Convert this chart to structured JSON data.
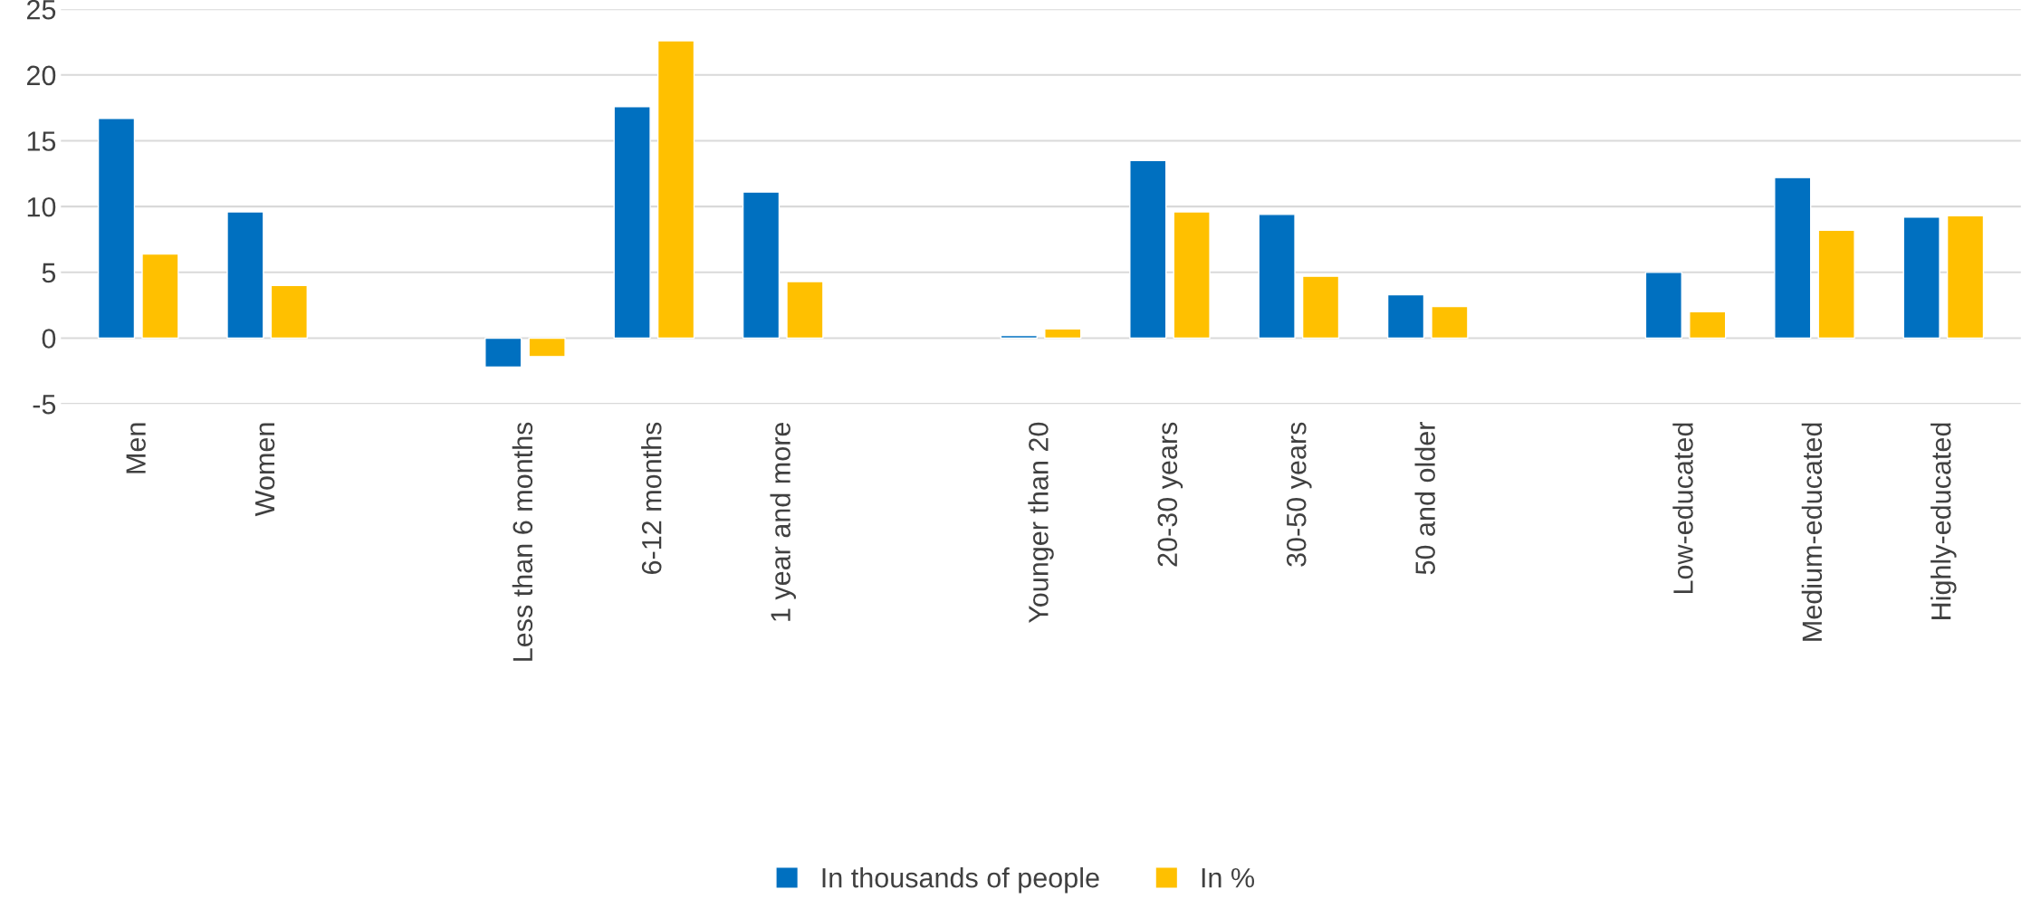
{
  "chart_data": {
    "type": "bar",
    "categories": [
      "Men",
      "Women",
      null,
      "Less than 6 months",
      "6-12 months",
      "1 year and more",
      null,
      "Younger than 20",
      "20-30 years",
      "30-50 years",
      "50 and older",
      null,
      "Low-educated",
      "Medium-educated",
      "Highly-educated"
    ],
    "series": [
      {
        "name": "In thousands of people",
        "color": "#0070c0",
        "values": [
          16.7,
          9.6,
          null,
          -2.2,
          17.6,
          11.1,
          null,
          0.2,
          13.5,
          9.4,
          3.3,
          null,
          5.0,
          12.2,
          9.2
        ]
      },
      {
        "name": "In %",
        "color": "#ffc000",
        "values": [
          6.4,
          4.0,
          null,
          -1.4,
          22.6,
          4.3,
          null,
          0.7,
          9.6,
          4.7,
          2.4,
          null,
          2.0,
          8.2,
          9.3
        ]
      }
    ],
    "ylim": [
      -5,
      25
    ],
    "yticks": [
      -5,
      0,
      5,
      10,
      15,
      20,
      25
    ],
    "grid": "y",
    "legend": "bottom"
  }
}
